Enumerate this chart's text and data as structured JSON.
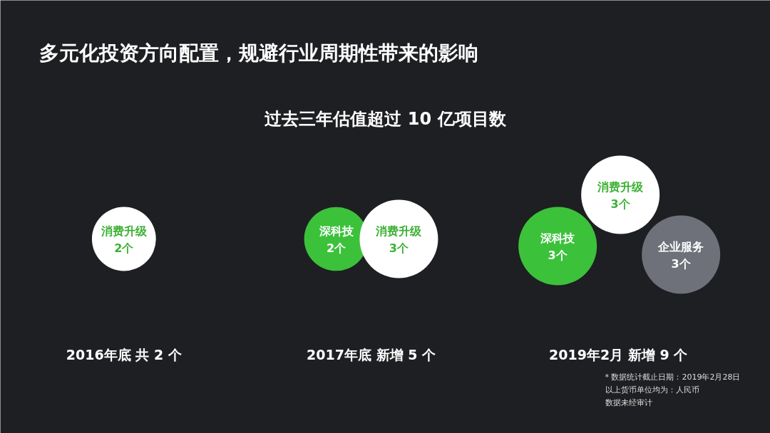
{
  "chart_data": {
    "type": "other",
    "title": "多元化投资方向配置，规避行业周期性带来的影响",
    "subtitle": "过去三年估值超过 10 亿项目数",
    "categories": [
      "2016年底 共 2 个",
      "2017年底 新增 5 个",
      "2019年2月 新增 9 个"
    ],
    "series": [
      {
        "name": "深科技",
        "color": "#3cc13b",
        "values": [
          null,
          2,
          3
        ],
        "value_labels": [
          null,
          "2个",
          "3个"
        ]
      },
      {
        "name": "消费升级",
        "color": "#ffffff",
        "values": [
          2,
          3,
          3
        ],
        "value_labels": [
          "2个",
          "3个",
          "3个"
        ]
      },
      {
        "name": "企业服务",
        "color": "#6e717a",
        "values": [
          null,
          null,
          3
        ],
        "value_labels": [
          null,
          null,
          "3个"
        ]
      }
    ],
    "annotations": [
      "* 数据统计截止日期：2019年2月28日",
      "以上货币单位均为：人民币",
      "数据未经审计"
    ]
  }
}
